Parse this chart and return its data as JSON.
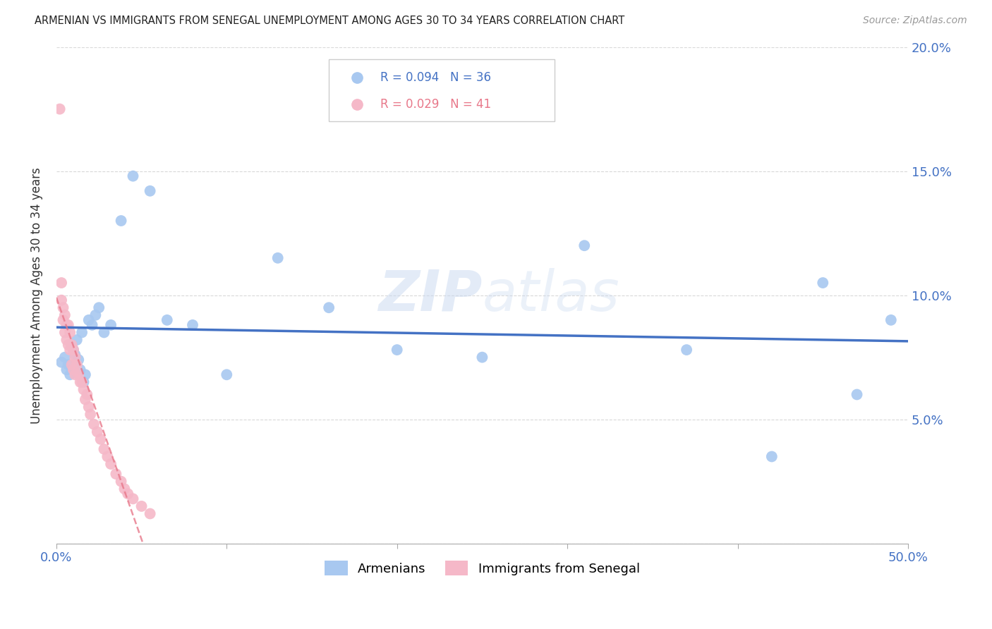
{
  "title": "ARMENIAN VS IMMIGRANTS FROM SENEGAL UNEMPLOYMENT AMONG AGES 30 TO 34 YEARS CORRELATION CHART",
  "source": "Source: ZipAtlas.com",
  "ylabel": "Unemployment Among Ages 30 to 34 years",
  "xlim": [
    0,
    0.5
  ],
  "ylim": [
    0,
    0.2
  ],
  "yticks": [
    0.0,
    0.05,
    0.1,
    0.15,
    0.2
  ],
  "ytick_labels": [
    "",
    "5.0%",
    "10.0%",
    "15.0%",
    "20.0%"
  ],
  "xticks": [
    0.0,
    0.1,
    0.2,
    0.3,
    0.4,
    0.5
  ],
  "armenian_color": "#a8c8f0",
  "senegal_color": "#f5b8c8",
  "trend_armenian_color": "#4472c4",
  "trend_senegal_color": "#e8788a",
  "watermark": "ZIPatlas",
  "arm_R": 0.094,
  "arm_N": 36,
  "sen_R": 0.029,
  "sen_N": 41,
  "armenians_x": [
    0.003,
    0.005,
    0.006,
    0.007,
    0.008,
    0.009,
    0.01,
    0.011,
    0.012,
    0.013,
    0.014,
    0.015,
    0.016,
    0.017,
    0.019,
    0.021,
    0.023,
    0.025,
    0.028,
    0.032,
    0.038,
    0.045,
    0.055,
    0.065,
    0.08,
    0.1,
    0.13,
    0.16,
    0.2,
    0.25,
    0.31,
    0.37,
    0.42,
    0.45,
    0.47,
    0.49
  ],
  "armenians_y": [
    0.073,
    0.075,
    0.07,
    0.072,
    0.068,
    0.08,
    0.078,
    0.076,
    0.082,
    0.074,
    0.07,
    0.085,
    0.065,
    0.068,
    0.09,
    0.088,
    0.092,
    0.095,
    0.085,
    0.088,
    0.13,
    0.148,
    0.142,
    0.09,
    0.088,
    0.068,
    0.115,
    0.095,
    0.078,
    0.075,
    0.12,
    0.078,
    0.035,
    0.105,
    0.06,
    0.09
  ],
  "senegal_x": [
    0.002,
    0.003,
    0.003,
    0.004,
    0.004,
    0.005,
    0.005,
    0.006,
    0.006,
    0.007,
    0.007,
    0.008,
    0.008,
    0.009,
    0.009,
    0.01,
    0.01,
    0.011,
    0.011,
    0.012,
    0.013,
    0.014,
    0.015,
    0.016,
    0.017,
    0.018,
    0.019,
    0.02,
    0.022,
    0.024,
    0.026,
    0.028,
    0.03,
    0.032,
    0.035,
    0.038,
    0.04,
    0.042,
    0.045,
    0.05,
    0.055
  ],
  "senegal_y": [
    0.175,
    0.105,
    0.098,
    0.095,
    0.09,
    0.092,
    0.085,
    0.088,
    0.082,
    0.088,
    0.08,
    0.085,
    0.078,
    0.08,
    0.072,
    0.078,
    0.07,
    0.075,
    0.068,
    0.072,
    0.068,
    0.065,
    0.065,
    0.062,
    0.058,
    0.06,
    0.055,
    0.052,
    0.048,
    0.045,
    0.042,
    0.038,
    0.035,
    0.032,
    0.028,
    0.025,
    0.022,
    0.02,
    0.018,
    0.015,
    0.012
  ]
}
